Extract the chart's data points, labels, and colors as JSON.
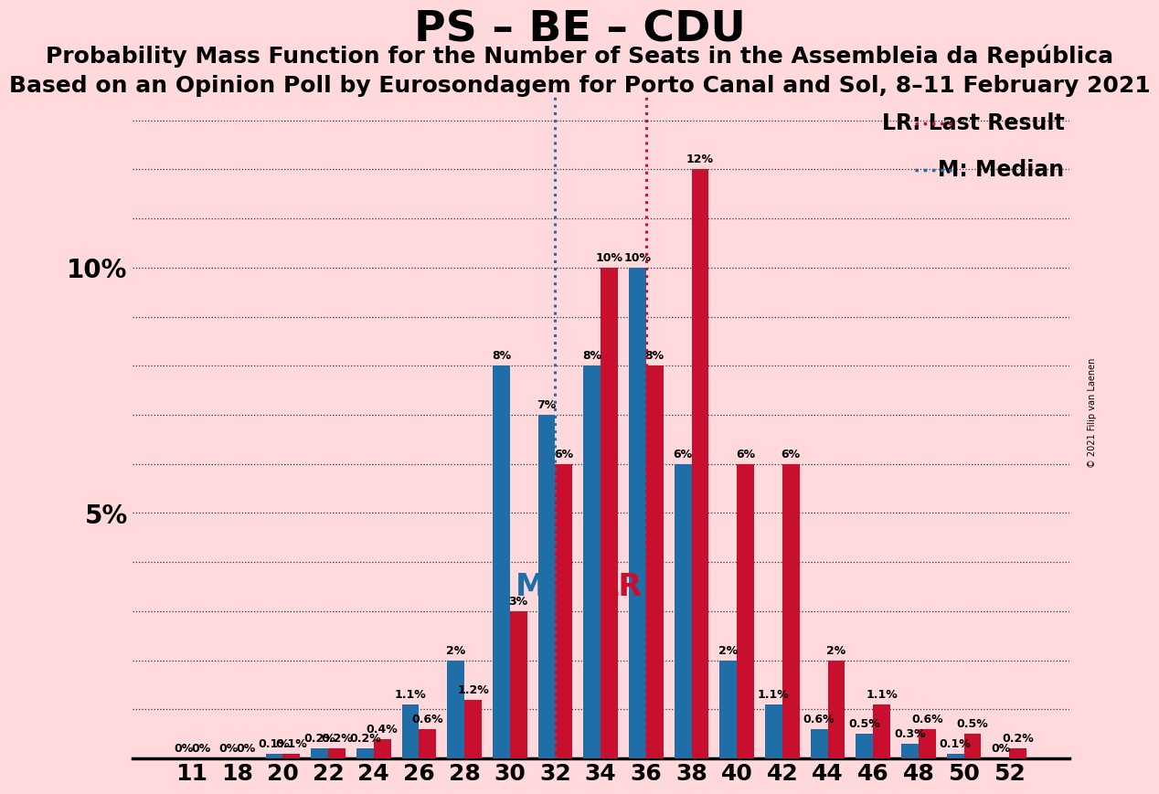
{
  "title": "PS – BE – CDU",
  "subtitle1": "Probability Mass Function for the Number of Seats in the Assembleia da República",
  "subtitle2": "Based on an Opinion Poll by Eurosondagem for Porto Canal and Sol, 8–11 February 2021",
  "copyright": "© 2021 Filip van Laenen",
  "background_color": "#FFD9DC",
  "bar_color_blue": "#1F6EA8",
  "bar_color_red": "#C8102E",
  "categories": [
    11,
    18,
    20,
    22,
    24,
    26,
    28,
    30,
    32,
    34,
    36,
    38,
    40,
    42,
    44,
    46,
    48,
    50,
    52
  ],
  "blue_values": [
    0.0,
    0.0,
    0.1,
    0.2,
    0.2,
    1.1,
    2.0,
    8.0,
    7.0,
    8.0,
    10.0,
    6.0,
    2.0,
    1.1,
    0.6,
    0.5,
    0.3,
    0.1,
    0.0
  ],
  "red_values": [
    0.0,
    0.0,
    0.1,
    0.2,
    0.4,
    0.6,
    1.2,
    3.0,
    6.0,
    10.0,
    8.0,
    12.0,
    6.0,
    6.0,
    2.0,
    1.1,
    0.6,
    0.5,
    0.2
  ],
  "median_seat": 32,
  "lr_seat": 36,
  "legend_lr": "LR: Last Result",
  "legend_m": "M: Median",
  "ylim": [
    0,
    13.5
  ],
  "title_fontsize": 34,
  "subtitle_fontsize": 18,
  "tick_fontsize": 18,
  "bar_label_fontsize": 9,
  "legend_fontsize": 17,
  "ml_fontsize": 24
}
